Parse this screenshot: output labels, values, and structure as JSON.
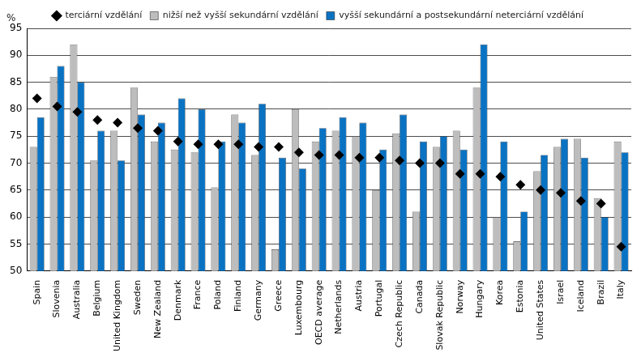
{
  "chart_data": {
    "type": "bar",
    "y_label": "%",
    "categories": [
      "Spain",
      "Slovenia",
      "Australia",
      "Belgium",
      "United Kingdom",
      "Sweden",
      "New Zealand",
      "Denmark",
      "France",
      "Poland",
      "Finland",
      "Germany",
      "Greece",
      "Luxembourg",
      "OECD average",
      "Netherlands",
      "Austria",
      "Portugal",
      "Czech Republic",
      "Canada",
      "Slovak Republic",
      "Norway",
      "Hungary",
      "Korea",
      "Estonia",
      "United States",
      "Israel",
      "Iceland",
      "Brazil",
      "Italy"
    ],
    "series": [
      {
        "name": "nižší než vyšší sekundární vzdělání",
        "type": "bar",
        "color": "#bdbdbd",
        "values": [
          73,
          86,
          92,
          70.5,
          76,
          84,
          74,
          72.5,
          72,
          65.5,
          79,
          71.5,
          54,
          80,
          74,
          76,
          75,
          65,
          75.5,
          61,
          73,
          76,
          84,
          60,
          55.5,
          68.5,
          73,
          74.5,
          63.5,
          74
        ]
      },
      {
        "name": "vyšší sekundární a postsekundární neterciární vzdělání",
        "type": "bar",
        "color": "#0a72c2",
        "values": [
          78.5,
          88,
          85,
          76,
          70.5,
          79,
          77.5,
          82,
          80,
          74,
          77.5,
          81,
          71,
          69,
          76.5,
          78.5,
          77.5,
          72.5,
          79,
          74,
          75,
          72.5,
          92,
          74,
          61,
          71.5,
          74.5,
          71,
          60,
          72
        ]
      },
      {
        "name": "terciární vzdělání",
        "type": "scatter",
        "marker": "diamond",
        "color": "#000000",
        "values": [
          82,
          80.5,
          79.5,
          78,
          77.5,
          76.5,
          76,
          74,
          73.5,
          73.5,
          73.5,
          73,
          73,
          72,
          71.5,
          71.5,
          71,
          71,
          70.5,
          70,
          70,
          68,
          68,
          67.5,
          66,
          65,
          64.5,
          63,
          62.5,
          54.5
        ]
      }
    ],
    "ylim": [
      50,
      95
    ],
    "yticks": [
      50,
      55,
      60,
      65,
      70,
      75,
      80,
      85,
      90,
      95
    ],
    "grid": true,
    "legend": "top"
  }
}
